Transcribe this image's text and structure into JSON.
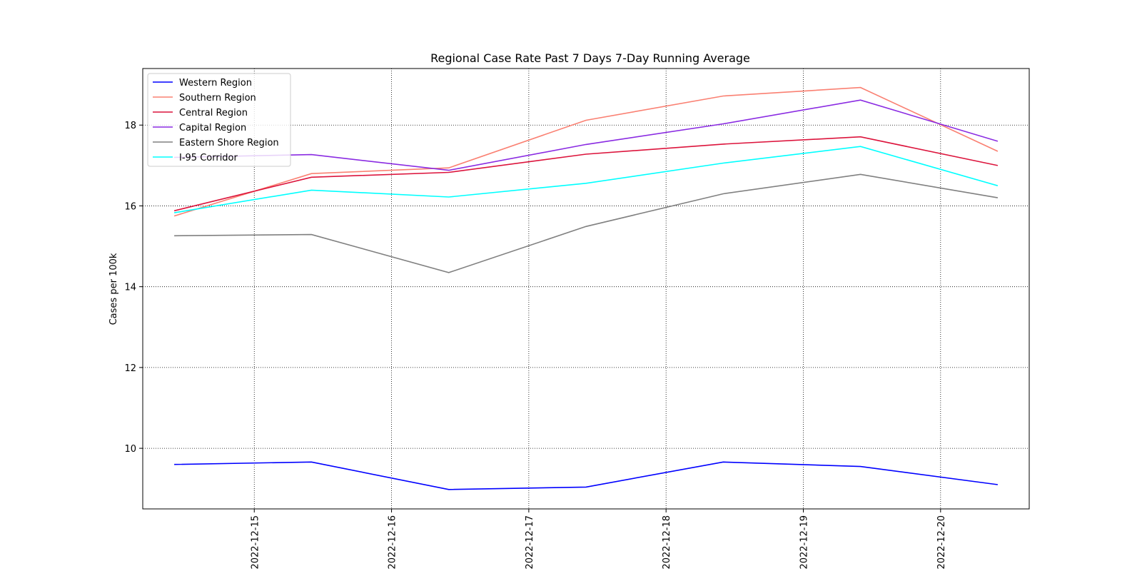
{
  "chart_data": {
    "type": "line",
    "title": "Regional Case Rate  Past 7 Days 7-Day Running Average",
    "xlabel": "",
    "ylabel": "Cases per 100k",
    "x": [
      "2022-12-14T10:00",
      "2022-12-15T10:00",
      "2022-12-16T10:00",
      "2022-12-17T10:00",
      "2022-12-18T10:00",
      "2022-12-19T10:00",
      "2022-12-20T10:00"
    ],
    "xlim": [
      "2022-12-14T04:30",
      "2022-12-20T15:30"
    ],
    "x_ticks": [
      "2022-12-15",
      "2022-12-16",
      "2022-12-17",
      "2022-12-18",
      "2022-12-19",
      "2022-12-20"
    ],
    "ylim": [
      8.5,
      19.4
    ],
    "y_ticks": [
      10,
      12,
      14,
      16,
      18
    ],
    "grid": true,
    "legend_position": "top-left",
    "series": [
      {
        "name": "Western Region",
        "color": "#0000ff",
        "values": [
          9.6,
          9.66,
          8.98,
          9.04,
          9.66,
          9.55,
          9.1
        ]
      },
      {
        "name": "Southern Region",
        "color": "#fa8072",
        "values": [
          15.75,
          16.8,
          16.94,
          18.12,
          18.72,
          18.93,
          17.35
        ]
      },
      {
        "name": "Central Region",
        "color": "#dc143c",
        "values": [
          15.88,
          16.71,
          16.83,
          17.28,
          17.53,
          17.71,
          17.0
        ]
      },
      {
        "name": "Capital Region",
        "color": "#8a2be2",
        "values": [
          17.2,
          17.27,
          16.88,
          17.52,
          18.03,
          18.62,
          17.6
        ]
      },
      {
        "name": "Eastern Shore Region",
        "color": "#808080",
        "values": [
          15.26,
          15.29,
          14.35,
          15.49,
          16.3,
          16.78,
          16.2
        ]
      },
      {
        "name": "I-95 Corridor",
        "color": "#00ffff",
        "values": [
          15.83,
          16.39,
          16.22,
          16.56,
          17.06,
          17.47,
          16.5
        ]
      }
    ]
  }
}
